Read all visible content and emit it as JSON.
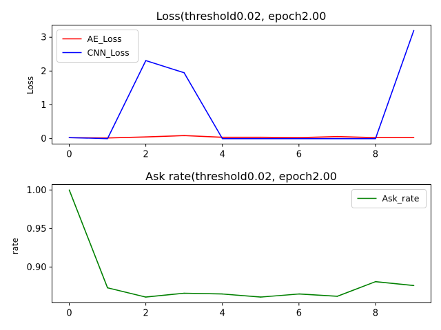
{
  "chart_data": [
    {
      "type": "line",
      "title": "Loss(threshold0.02, epoch2.00",
      "xlabel": "",
      "ylabel": "Loss",
      "x": [
        0,
        1,
        2,
        3,
        4,
        5,
        6,
        7,
        8,
        9
      ],
      "xticks": [
        0,
        2,
        4,
        6,
        8
      ],
      "yticks": [
        0,
        1,
        2,
        3
      ],
      "xlim": [
        -0.45,
        9.45
      ],
      "ylim": [
        -0.16,
        3.36
      ],
      "grid": false,
      "legend": "upper left",
      "series": [
        {
          "name": "AE_Loss",
          "color": "#ff0000",
          "values": [
            0.03,
            0.02,
            0.05,
            0.09,
            0.04,
            0.04,
            0.03,
            0.06,
            0.03,
            0.03
          ]
        },
        {
          "name": "CNN_Loss",
          "color": "#0000ff",
          "values": [
            0.03,
            0.0,
            2.31,
            1.95,
            0.0,
            0.0,
            0.0,
            0.0,
            0.0,
            3.2
          ]
        }
      ]
    },
    {
      "type": "line",
      "title": "Ask rate(threshold0.02, epoch2.00",
      "xlabel": "",
      "ylabel": "rate",
      "x": [
        0,
        1,
        2,
        3,
        4,
        5,
        6,
        7,
        8,
        9
      ],
      "xticks": [
        0,
        2,
        4,
        6,
        8
      ],
      "yticks": [
        0.9,
        0.95,
        1.0
      ],
      "ytick_labels": [
        "0.90",
        "0.95",
        "1.00"
      ],
      "xlim": [
        -0.45,
        9.45
      ],
      "ylim": [
        0.8535,
        1.007
      ],
      "grid": false,
      "legend": "upper right",
      "series": [
        {
          "name": "Ask_rate",
          "color": "#008000",
          "values": [
            1.0,
            0.873,
            0.861,
            0.866,
            0.865,
            0.861,
            0.865,
            0.862,
            0.881,
            0.876
          ]
        }
      ]
    }
  ]
}
